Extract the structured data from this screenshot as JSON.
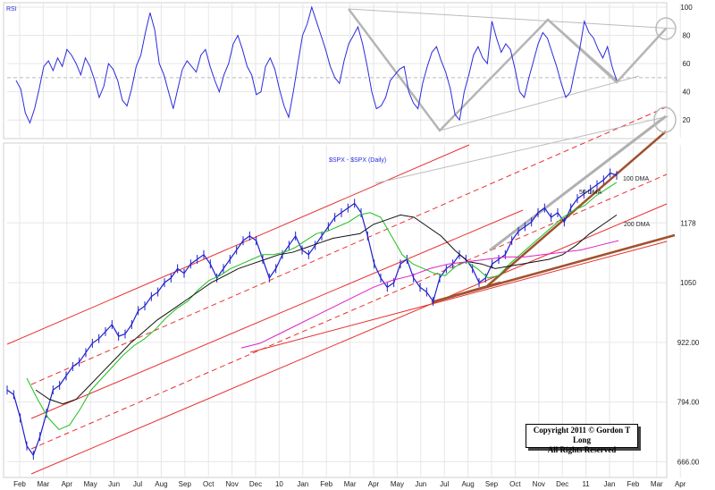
{
  "chart_data": [
    {
      "type": "line",
      "title": "RSI",
      "y_ticks": [
        20,
        40,
        60,
        80,
        100
      ],
      "ylim": [
        10,
        100
      ],
      "overbought": 80,
      "midline": 50,
      "grid": true,
      "series": [
        {
          "color": "#2a2adf",
          "values": [
            48,
            42,
            25,
            18,
            28,
            42,
            58,
            62,
            55,
            64,
            58,
            70,
            66,
            60,
            52,
            64,
            58,
            48,
            36,
            44,
            60,
            56,
            48,
            34,
            30,
            42,
            58,
            66,
            82,
            96,
            84,
            60,
            52,
            40,
            28,
            42,
            56,
            62,
            58,
            54,
            66,
            70,
            58,
            48,
            40,
            52,
            60,
            74,
            80,
            70,
            58,
            52,
            38,
            40,
            58,
            64,
            56,
            42,
            30,
            22,
            40,
            60,
            80,
            88,
            100,
            90,
            80,
            70,
            58,
            50,
            46,
            62,
            74,
            80,
            86,
            74,
            58,
            40,
            28,
            30,
            36,
            48,
            52,
            56,
            58,
            40,
            32,
            28,
            46,
            58,
            68,
            72,
            62,
            54,
            42,
            24,
            20,
            40,
            52,
            66,
            72,
            64,
            60,
            90,
            78,
            68,
            74,
            70,
            56,
            40,
            36,
            50,
            62,
            74,
            82,
            78,
            68,
            58,
            46,
            36,
            40,
            56,
            70,
            90,
            82,
            78,
            70,
            64,
            72,
            58,
            48
          ]
        }
      ]
    },
    {
      "type": "line",
      "title": "$SPX - $SPX (Daily)",
      "y_ticks": [
        666.0,
        794.0,
        922.0,
        1050,
        1178
      ],
      "ylim": [
        640,
        1330
      ],
      "x_ticks": [
        "Feb",
        "Mar",
        "Apr",
        "May",
        "Jun",
        "Jul",
        "Aug",
        "Sep",
        "Oct",
        "Nov",
        "Dec",
        "10",
        "Jan",
        "Feb",
        "Mar",
        "Apr",
        "May",
        "Jun",
        "Jul",
        "Aug",
        "Sep",
        "Oct",
        "Nov",
        "Dec",
        "11",
        "Jan",
        "Feb",
        "Mar",
        "Apr"
      ],
      "grid": true,
      "series": [
        {
          "name": "$SPX - $SPX (Daily)",
          "color": "#1f1fd0",
          "values": [
            820,
            810,
            760,
            700,
            680,
            720,
            770,
            820,
            830,
            850,
            870,
            880,
            900,
            920,
            930,
            945,
            960,
            935,
            940,
            960,
            990,
            1000,
            1020,
            1030,
            1050,
            1060,
            1080,
            1070,
            1090,
            1100,
            1110,
            1090,
            1060,
            1080,
            1100,
            1120,
            1140,
            1150,
            1140,
            1100,
            1060,
            1080,
            1110,
            1130,
            1150,
            1120,
            1110,
            1130,
            1150,
            1170,
            1190,
            1200,
            1210,
            1220,
            1200,
            1150,
            1090,
            1060,
            1040,
            1050,
            1090,
            1100,
            1060,
            1040,
            1030,
            1010,
            1060,
            1080,
            1090,
            1110,
            1100,
            1080,
            1050,
            1060,
            1090,
            1100,
            1110,
            1140,
            1160,
            1170,
            1180,
            1200,
            1210,
            1190,
            1200,
            1180,
            1210,
            1230,
            1240,
            1250,
            1260,
            1270,
            1285,
            1280
          ]
        },
        {
          "name": "50 DMA",
          "color": "#1fbf1f",
          "values": [
            845,
            800,
            760,
            735,
            745,
            780,
            820,
            845,
            870,
            895,
            915,
            930,
            950,
            975,
            995,
            1010,
            1035,
            1055,
            1065,
            1080,
            1090,
            1100,
            1110,
            1110,
            1115,
            1125,
            1140,
            1155,
            1160,
            1170,
            1180,
            1195,
            1200,
            1190,
            1150,
            1110,
            1090,
            1080,
            1070,
            1065,
            1085,
            1095,
            1080,
            1060,
            1065,
            1090,
            1110,
            1130,
            1150,
            1170,
            1190,
            1205,
            1215,
            1235,
            1250,
            1265
          ]
        },
        {
          "name": "100 DMA",
          "color": "#111111",
          "values": [
            820,
            800,
            790,
            800,
            830,
            860,
            890,
            920,
            945,
            970,
            990,
            1010,
            1030,
            1050,
            1065,
            1080,
            1090,
            1100,
            1110,
            1115,
            1125,
            1135,
            1145,
            1150,
            1155,
            1175,
            1185,
            1195,
            1190,
            1170,
            1150,
            1120,
            1095,
            1090,
            1080,
            1085,
            1090,
            1095,
            1100,
            1110,
            1130,
            1155,
            1175,
            1195
          ]
        },
        {
          "name": "200 DMA",
          "color": "#e020c8",
          "values": [
            910,
            920,
            940,
            960,
            980,
            1000,
            1020,
            1040,
            1055,
            1065,
            1080,
            1090,
            1095,
            1100,
            1105,
            1105,
            1110,
            1115,
            1120,
            1130,
            1140
          ]
        }
      ],
      "annotations": [
        "50 DMA",
        "100 DMA",
        "200 DMA"
      ]
    }
  ],
  "copyright": {
    "line1": "Copyright 2011 © Gordon T Long",
    "line2": "All Rights Reserved"
  }
}
